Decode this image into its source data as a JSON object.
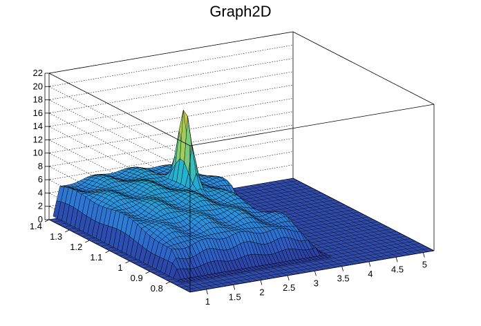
{
  "chart_data": {
    "type": "surface3d",
    "title": "Graph2D",
    "xlabel": "",
    "ylabel": "",
    "zlabel": "",
    "xlim": [
      0.7,
      5.2
    ],
    "ylim": [
      0.7,
      1.4
    ],
    "zlim": [
      0,
      22
    ],
    "x_ticks": [
      "1",
      "1.5",
      "2",
      "2.5",
      "3",
      "3.5",
      "4",
      "4.5",
      "5"
    ],
    "y_ticks": [
      "0.8",
      "0.9",
      "1",
      "1.1",
      "1.2",
      "1.3",
      "1.4"
    ],
    "z_ticks": [
      "0",
      "2",
      "4",
      "6",
      "8",
      "10",
      "12",
      "14",
      "16",
      "18",
      "20",
      "22"
    ],
    "grid": true,
    "colormap": "viridis-like (blue to yellow)",
    "colors": [
      "#2a3a9a",
      "#2e61c8",
      "#2c8ee0",
      "#21b3d0",
      "#4cc3a8",
      "#8fcf6a",
      "#d6c93a",
      "#f5e92b"
    ],
    "features": {
      "peak": {
        "x": 2.55,
        "y": 1.22,
        "z": 17
      },
      "plateau_height": 6,
      "dip": {
        "x": 3.3,
        "y": 1.1,
        "z": 2
      }
    }
  }
}
